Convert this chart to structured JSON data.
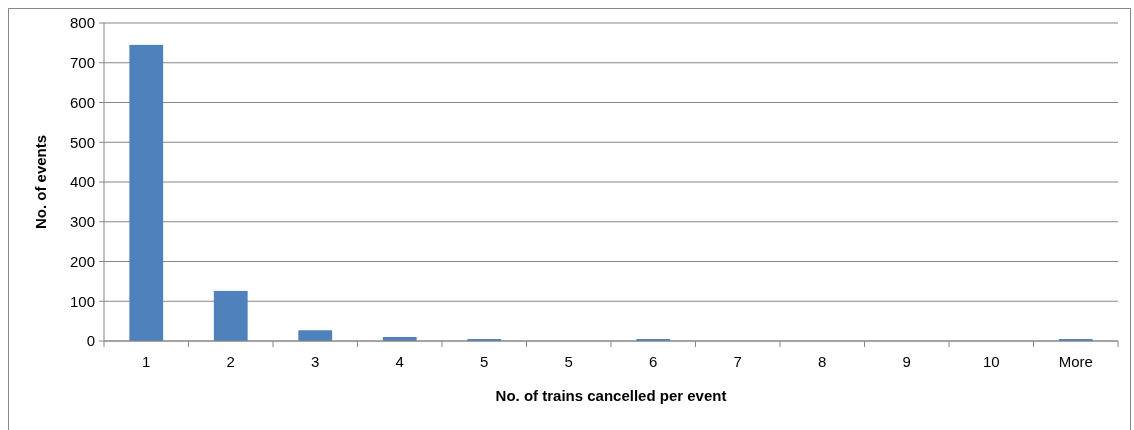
{
  "chart_data": {
    "type": "bar",
    "xlabel": "No. of trains cancelled per event",
    "ylabel": "No. of events",
    "categories": [
      "1",
      "2",
      "3",
      "4",
      "5",
      "5",
      "6",
      "7",
      "8",
      "9",
      "10",
      "More"
    ],
    "values": [
      745,
      126,
      27,
      10,
      5,
      0,
      5,
      0,
      0,
      0,
      0,
      5
    ],
    "color": "#4f81bd",
    "ylim": [
      0,
      800
    ],
    "yticks": [
      0,
      100,
      200,
      300,
      400,
      500,
      600,
      700,
      800
    ],
    "grid": "y"
  }
}
